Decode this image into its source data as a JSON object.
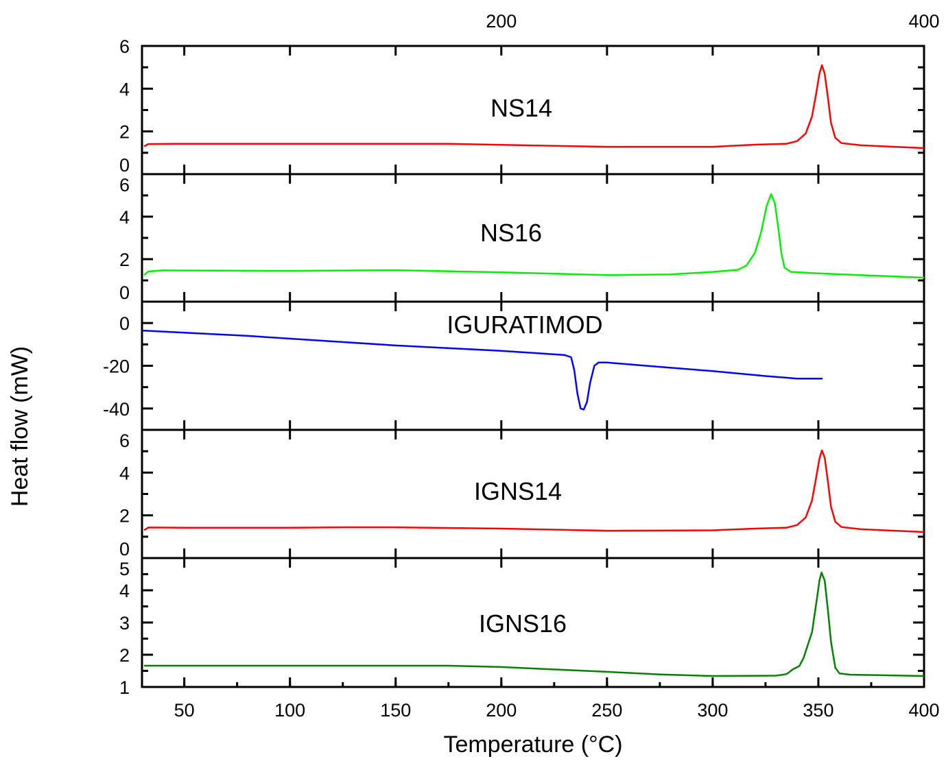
{
  "chart_data": {
    "type": "line",
    "layout": "stacked panels sharing x axis",
    "xlabel": "Temperature (°C)",
    "ylabel": "Heat flow (mW)",
    "xlim": [
      30,
      400
    ],
    "x_ticks": [
      50,
      100,
      150,
      200,
      250,
      300,
      350,
      400
    ],
    "top_x_ticks": [
      200,
      400
    ],
    "grid": false,
    "panels": [
      {
        "name": "NS14",
        "color": "#ff0000",
        "ylim": [
          0,
          6
        ],
        "y_ticks": [
          0,
          2,
          4,
          6
        ],
        "points": [
          [
            31,
            1.3
          ],
          [
            33,
            1.41
          ],
          [
            50,
            1.42
          ],
          [
            100,
            1.42
          ],
          [
            175,
            1.42
          ],
          [
            200,
            1.37
          ],
          [
            250,
            1.28
          ],
          [
            300,
            1.28
          ],
          [
            320,
            1.38
          ],
          [
            335,
            1.42
          ],
          [
            340,
            1.55
          ],
          [
            344,
            1.9
          ],
          [
            347,
            2.7
          ],
          [
            349,
            3.8
          ],
          [
            350.5,
            4.7
          ],
          [
            351.7,
            5.1
          ],
          [
            353,
            4.7
          ],
          [
            354.5,
            3.6
          ],
          [
            356,
            2.4
          ],
          [
            358,
            1.7
          ],
          [
            361,
            1.45
          ],
          [
            370,
            1.35
          ],
          [
            400,
            1.22
          ]
        ]
      },
      {
        "name": "NS16",
        "color": "#00ee00",
        "ylim": [
          0,
          6
        ],
        "y_ticks": [
          0,
          2,
          4,
          6
        ],
        "points": [
          [
            31,
            1.25
          ],
          [
            33,
            1.42
          ],
          [
            40,
            1.47
          ],
          [
            100,
            1.45
          ],
          [
            150,
            1.48
          ],
          [
            200,
            1.38
          ],
          [
            250,
            1.25
          ],
          [
            280,
            1.28
          ],
          [
            300,
            1.4
          ],
          [
            312,
            1.5
          ],
          [
            316,
            1.7
          ],
          [
            320,
            2.3
          ],
          [
            323,
            3.3
          ],
          [
            325.5,
            4.5
          ],
          [
            327.7,
            5.06
          ],
          [
            329.5,
            4.6
          ],
          [
            331,
            3.5
          ],
          [
            332.5,
            2.3
          ],
          [
            334,
            1.6
          ],
          [
            337,
            1.4
          ],
          [
            350,
            1.33
          ],
          [
            400,
            1.13
          ]
        ]
      },
      {
        "name": "IGURATIMOD",
        "color": "#0000ff",
        "ylim": [
          -50,
          10
        ],
        "y_ticks": [
          -40,
          -20,
          0
        ],
        "points": [
          [
            30,
            -3.5
          ],
          [
            80,
            -6
          ],
          [
            150,
            -10.5
          ],
          [
            200,
            -13
          ],
          [
            230,
            -15
          ],
          [
            233,
            -16
          ],
          [
            234.5,
            -22
          ],
          [
            236,
            -33
          ],
          [
            237.5,
            -40
          ],
          [
            239,
            -40.5
          ],
          [
            240.5,
            -37
          ],
          [
            242,
            -28
          ],
          [
            244,
            -20
          ],
          [
            246,
            -18.5
          ],
          [
            250,
            -18.5
          ],
          [
            275,
            -20.5
          ],
          [
            300,
            -22.5
          ],
          [
            325,
            -24.8
          ],
          [
            340,
            -26
          ],
          [
            352,
            -26
          ]
        ]
      },
      {
        "name": "IGNS14",
        "color": "#ff0000",
        "ylim": [
          0,
          6
        ],
        "y_ticks": [
          0,
          2,
          4,
          6
        ],
        "points": [
          [
            31,
            1.3
          ],
          [
            33,
            1.43
          ],
          [
            50,
            1.42
          ],
          [
            100,
            1.42
          ],
          [
            125,
            1.44
          ],
          [
            150,
            1.44
          ],
          [
            200,
            1.38
          ],
          [
            250,
            1.28
          ],
          [
            300,
            1.3
          ],
          [
            320,
            1.38
          ],
          [
            335,
            1.42
          ],
          [
            340,
            1.55
          ],
          [
            344,
            1.9
          ],
          [
            347,
            2.7
          ],
          [
            349,
            3.8
          ],
          [
            350.5,
            4.65
          ],
          [
            351.7,
            5.04
          ],
          [
            353,
            4.7
          ],
          [
            354.5,
            3.6
          ],
          [
            356,
            2.4
          ],
          [
            358,
            1.7
          ],
          [
            361,
            1.45
          ],
          [
            370,
            1.35
          ],
          [
            400,
            1.22
          ]
        ]
      },
      {
        "name": "IGNS16",
        "color": "#008000",
        "ylim": [
          1,
          5
        ],
        "y_ticks": [
          1,
          2,
          3,
          4,
          5
        ],
        "points": [
          [
            31,
            1.66
          ],
          [
            50,
            1.66
          ],
          [
            175,
            1.66
          ],
          [
            200,
            1.62
          ],
          [
            250,
            1.47
          ],
          [
            275,
            1.39
          ],
          [
            300,
            1.34
          ],
          [
            330,
            1.35
          ],
          [
            335,
            1.4
          ],
          [
            338,
            1.55
          ],
          [
            341,
            1.65
          ],
          [
            343,
            1.9
          ],
          [
            345,
            2.3
          ],
          [
            347,
            2.7
          ],
          [
            349,
            3.6
          ],
          [
            350.5,
            4.3
          ],
          [
            351.5,
            4.55
          ],
          [
            353,
            4.3
          ],
          [
            354.5,
            3.4
          ],
          [
            356,
            2.4
          ],
          [
            358,
            1.6
          ],
          [
            360,
            1.42
          ],
          [
            365,
            1.38
          ],
          [
            400,
            1.34
          ]
        ]
      }
    ]
  }
}
